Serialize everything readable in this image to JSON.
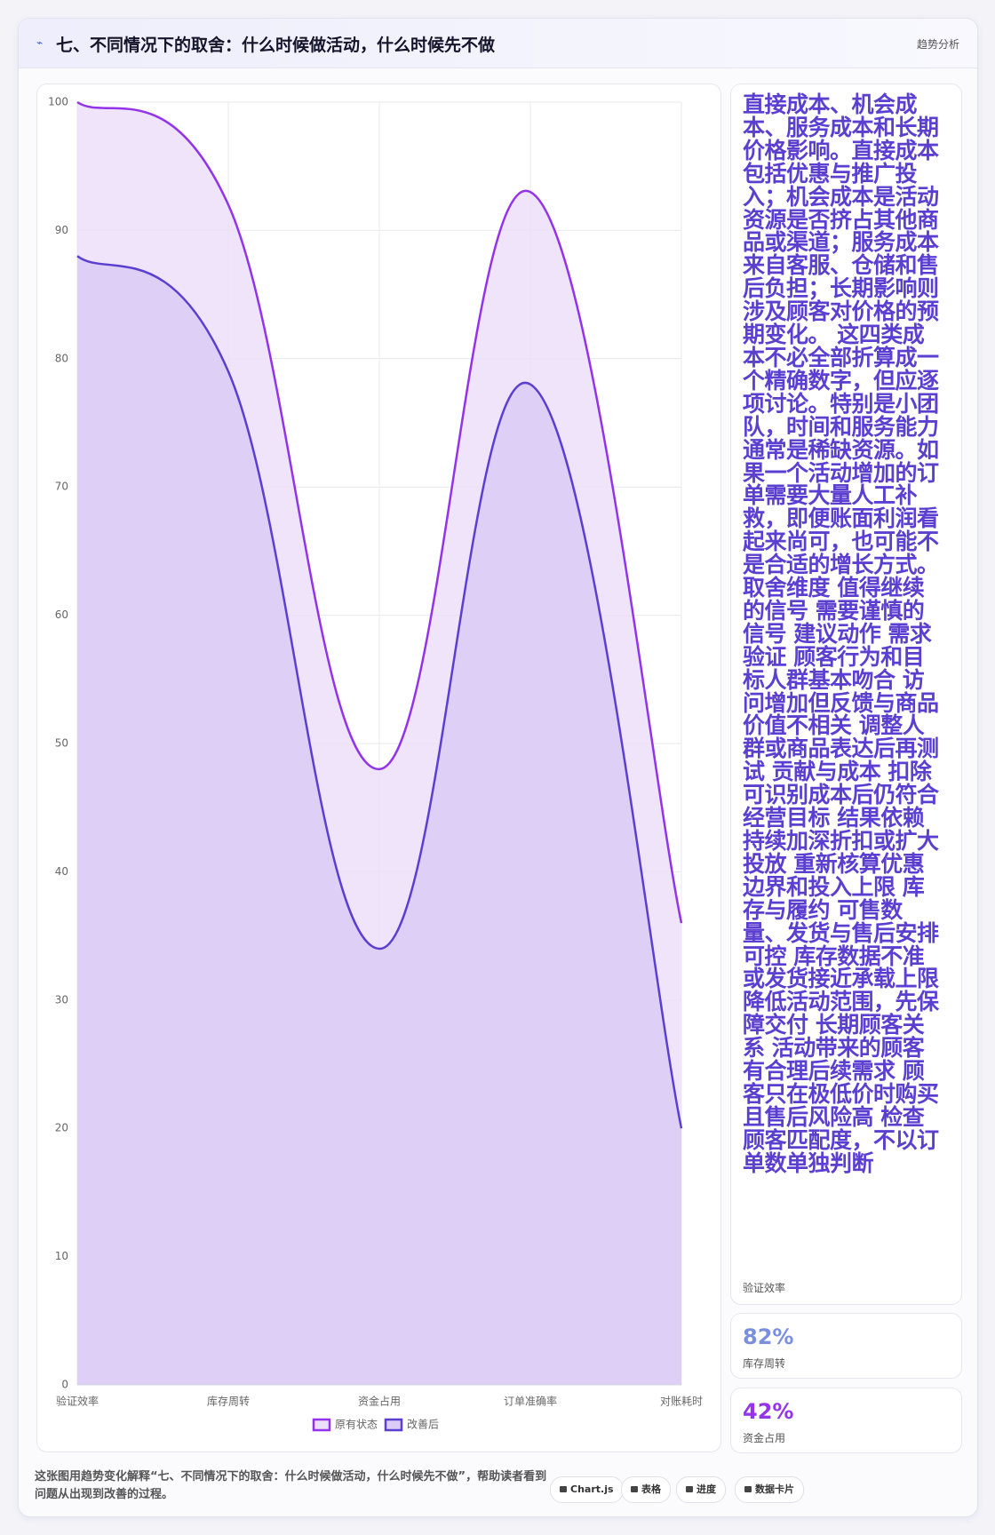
{
  "header": {
    "title": "七、不同情况下的取舍：什么时候做活动，什么时候先不做",
    "tag": "趋势分析"
  },
  "chart_data": {
    "type": "line",
    "categories": [
      "验证效率",
      "库存周转",
      "资金占用",
      "订单准确率",
      "对账耗时"
    ],
    "series": [
      {
        "name": "原有状态",
        "color": "#9333ea",
        "fill": "#ecdff8",
        "values": [
          100,
          92,
          48,
          93,
          36
        ]
      },
      {
        "name": "改善后",
        "color": "#5b3fd0",
        "fill": "#dacbf7",
        "values": [
          88,
          79,
          34,
          78,
          20
        ]
      }
    ],
    "ylim": [
      0,
      100
    ],
    "yticks": [
      0,
      10,
      20,
      30,
      40,
      50,
      60,
      70,
      80,
      90,
      100
    ],
    "grid": true
  },
  "side": {
    "text": "直接成本、机会成本、服务成本和长期价格影响。直接成本包括优惠与推广投入；机会成本是活动资源是否挤占其他商品或渠道；服务成本来自客服、仓储和售后负担；长期影响则涉及顾客对价格的预期变化。 这四类成本不必全部折算成一个精确数字，但应逐项讨论。特别是小团队，时间和服务能力通常是稀缺资源。如果一个活动增加的订单需要大量人工补救，即便账面利润看起来尚可，也可能不是合适的增长方式。 取舍维度 值得继续的信号 需要谨慎的信号 建议动作 需求验证 顾客行为和目标人群基本吻合 访问增加但反馈与商品价值不相关 调整人群或商品表达后再测试 贡献与成本 扣除可识别成本后仍符合经营目标 结果依赖持续加深折扣或扩大投放 重新核算优惠边界和投入上限 库存与履约 可售数量、发货与售后安排可控 库存数据不准或发货接近承载上限 降低活动范围，先保障交付 长期顾客关系 活动带来的顾客有合理后续需求 顾客只在极低价时购买且售后风险高 检查顾客匹配度，不以订单数单独判断",
    "label": "验证效率"
  },
  "stat_cards": [
    {
      "value": "82%",
      "label": "库存周转"
    },
    {
      "value": "42%",
      "label": "资金占用"
    }
  ],
  "footer": {
    "text": "这张图用趋势变化解释“七、不同情况下的取舍：什么时候做活动，什么时候先不做”，帮助读者看到问题从出现到改善的过程。",
    "buttons": [
      "Chart.js",
      "表格",
      "进度",
      "数据卡片"
    ]
  }
}
